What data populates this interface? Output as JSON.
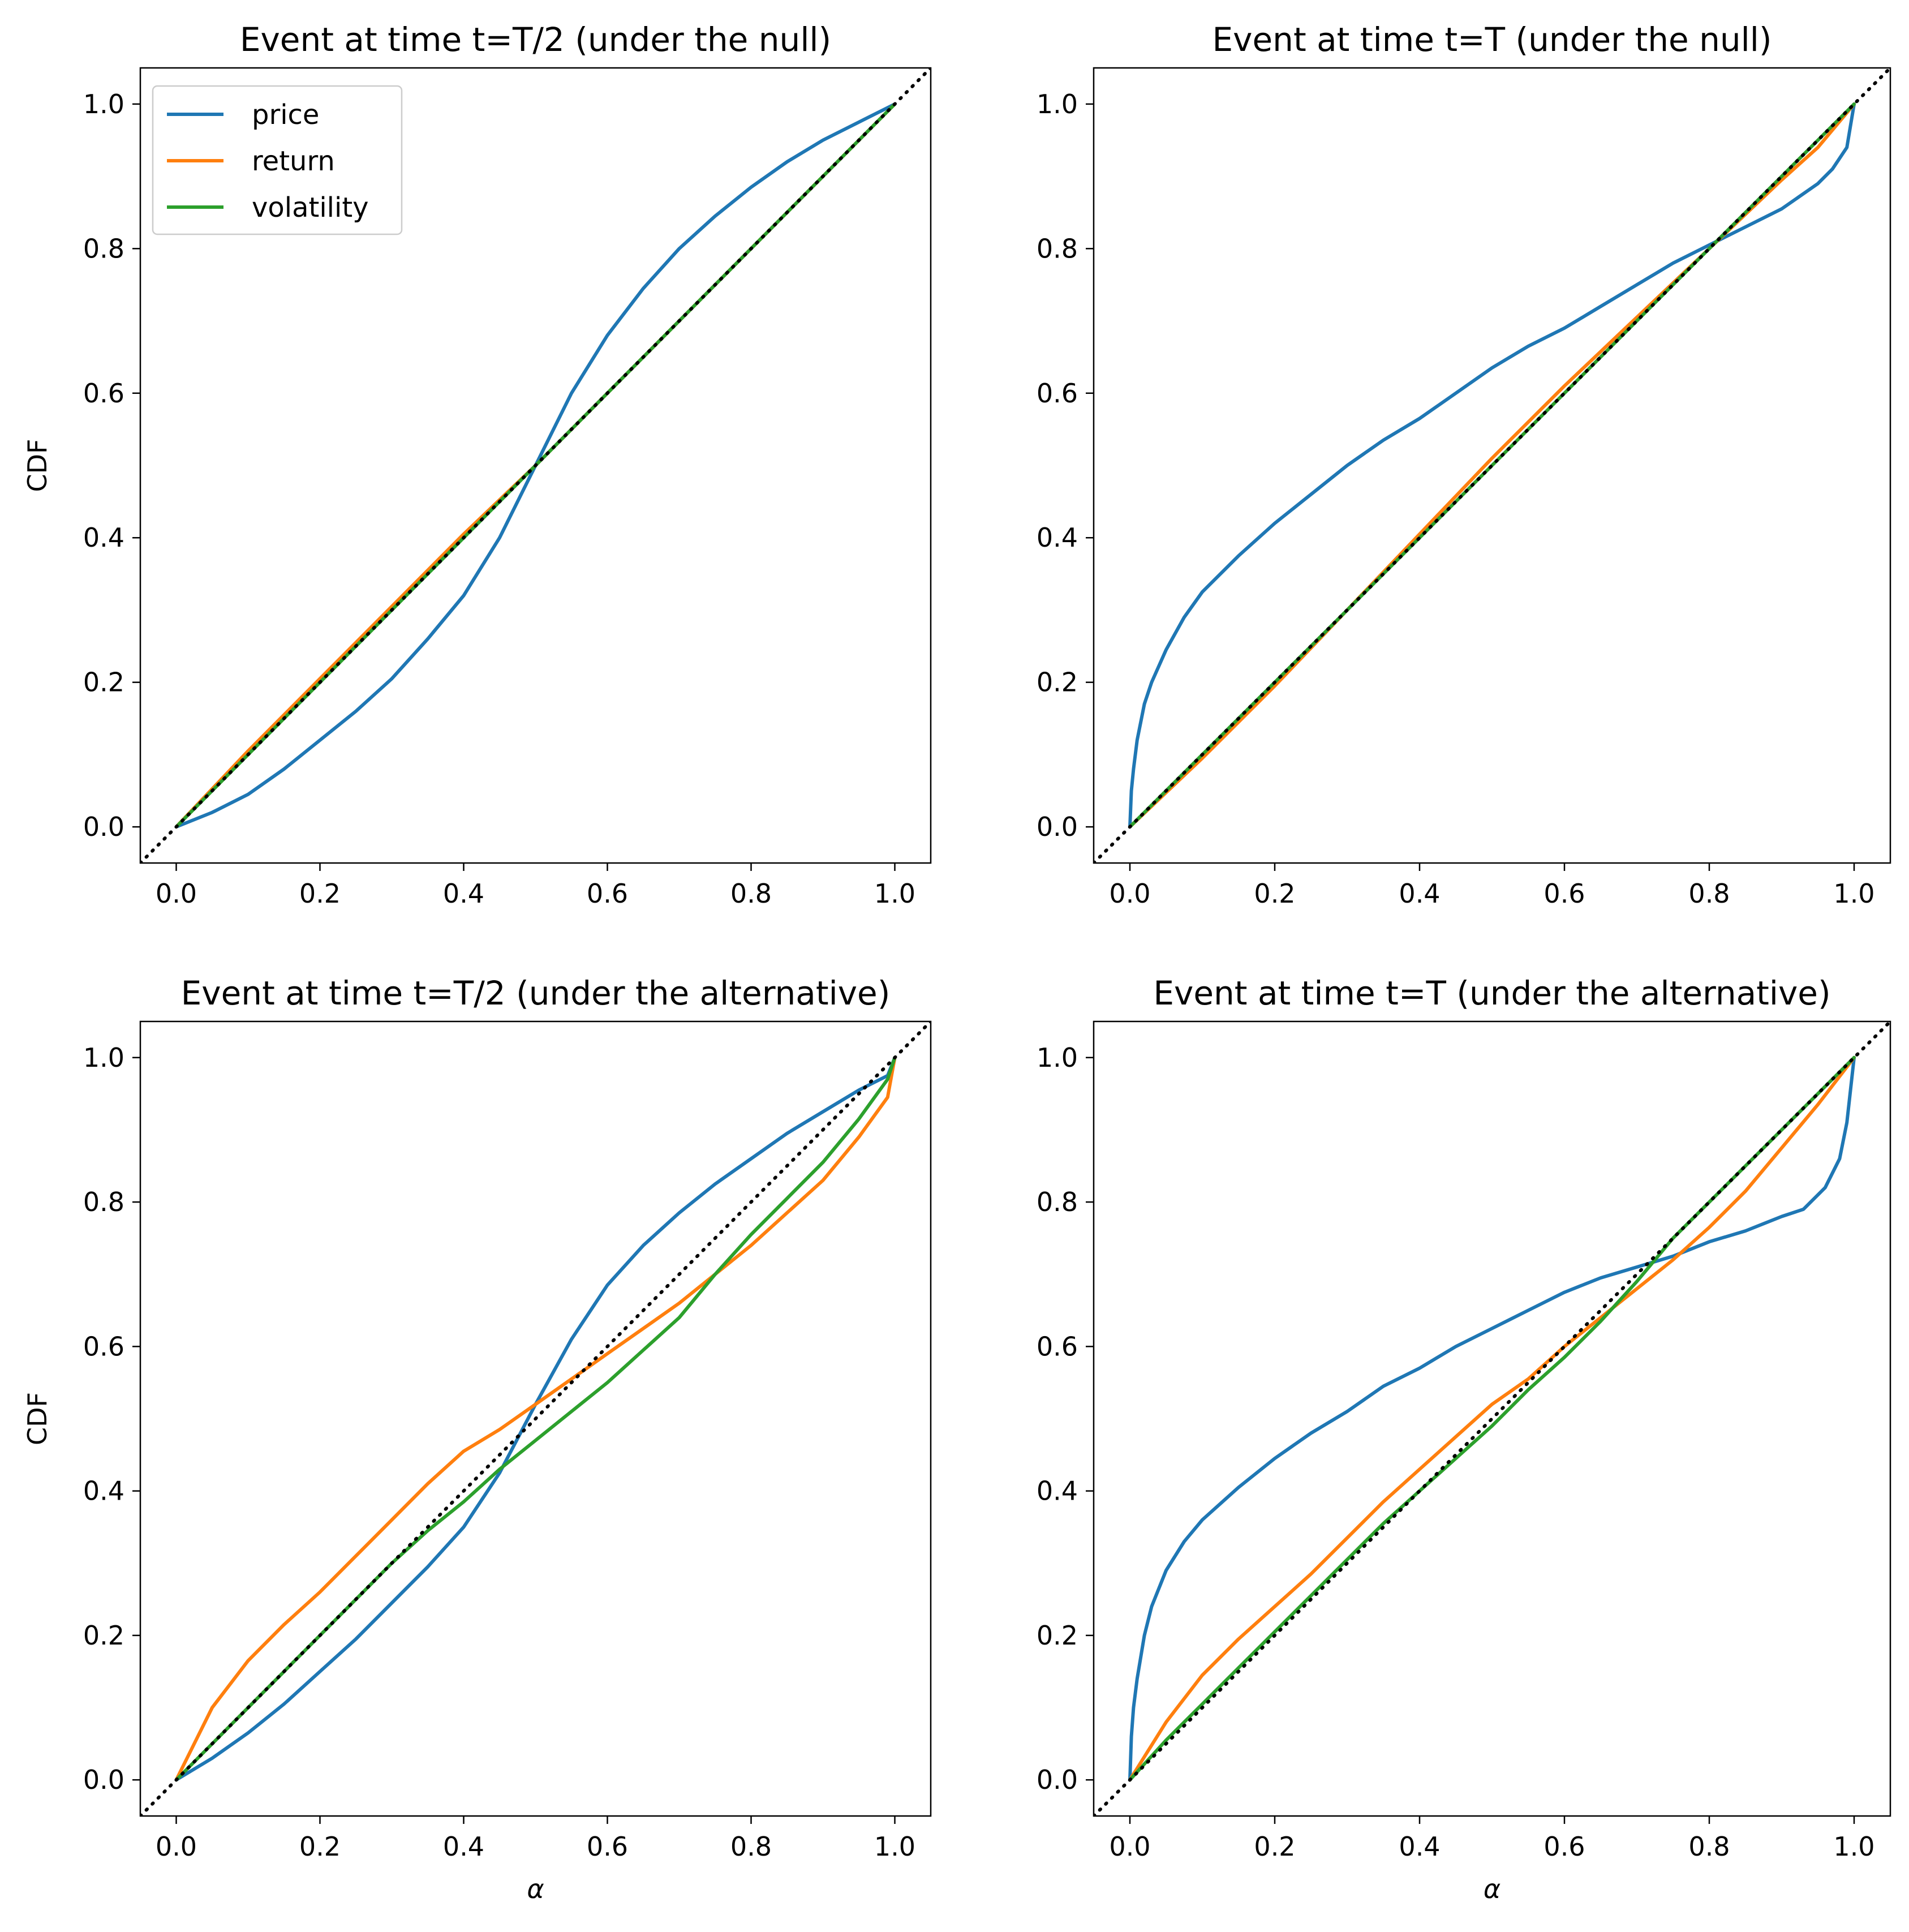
{
  "chart_data": [
    {
      "type": "line",
      "title": "Event at time t=T/2 (under the null)",
      "xlabel": "",
      "ylabel": "CDF",
      "xlim": [
        -0.05,
        1.05
      ],
      "ylim": [
        -0.05,
        1.05
      ],
      "xticks": [
        "0.0",
        "0.2",
        "0.4",
        "0.6",
        "0.8",
        "1.0"
      ],
      "yticks": [
        "0.0",
        "0.2",
        "0.4",
        "0.6",
        "0.8",
        "1.0"
      ],
      "legend": {
        "show": true,
        "position": "upper-left"
      },
      "reference_line": {
        "style": "dotted",
        "color": "#000000",
        "x": [
          -0.05,
          1.05
        ],
        "y": [
          -0.05,
          1.05
        ]
      },
      "series": [
        {
          "name": "price",
          "color": "#1f77b4",
          "x": [
            0,
            0.05,
            0.1,
            0.15,
            0.2,
            0.25,
            0.3,
            0.35,
            0.4,
            0.45,
            0.5,
            0.55,
            0.6,
            0.65,
            0.7,
            0.75,
            0.8,
            0.85,
            0.9,
            0.95,
            1.0
          ],
          "y": [
            0,
            0.02,
            0.045,
            0.08,
            0.12,
            0.16,
            0.205,
            0.26,
            0.32,
            0.4,
            0.5,
            0.6,
            0.68,
            0.745,
            0.8,
            0.845,
            0.885,
            0.92,
            0.95,
            0.975,
            1.0
          ]
        },
        {
          "name": "return",
          "color": "#ff7f0e",
          "x": [
            0,
            0.1,
            0.2,
            0.3,
            0.4,
            0.5,
            0.6,
            0.7,
            0.8,
            0.9,
            1.0
          ],
          "y": [
            0,
            0.105,
            0.205,
            0.305,
            0.405,
            0.5,
            0.6,
            0.7,
            0.8,
            0.9,
            1.0
          ]
        },
        {
          "name": "volatility",
          "color": "#2ca02c",
          "x": [
            0,
            0.1,
            0.2,
            0.3,
            0.4,
            0.5,
            0.6,
            0.7,
            0.8,
            0.9,
            1.0
          ],
          "y": [
            0,
            0.1,
            0.2,
            0.3,
            0.4,
            0.5,
            0.6,
            0.7,
            0.8,
            0.9,
            1.0
          ]
        }
      ]
    },
    {
      "type": "line",
      "title": "Event at time t=T (under the null)",
      "xlabel": "",
      "ylabel": "",
      "xlim": [
        -0.05,
        1.05
      ],
      "ylim": [
        -0.05,
        1.05
      ],
      "xticks": [
        "0.0",
        "0.2",
        "0.4",
        "0.6",
        "0.8",
        "1.0"
      ],
      "yticks": [
        "0.0",
        "0.2",
        "0.4",
        "0.6",
        "0.8",
        "1.0"
      ],
      "legend": {
        "show": false
      },
      "reference_line": {
        "style": "dotted",
        "color": "#000000",
        "x": [
          -0.05,
          1.05
        ],
        "y": [
          -0.05,
          1.05
        ]
      },
      "series": [
        {
          "name": "price",
          "color": "#1f77b4",
          "x": [
            0,
            0.002,
            0.005,
            0.01,
            0.02,
            0.03,
            0.05,
            0.075,
            0.1,
            0.15,
            0.2,
            0.25,
            0.3,
            0.35,
            0.4,
            0.45,
            0.5,
            0.55,
            0.6,
            0.65,
            0.7,
            0.75,
            0.8,
            0.85,
            0.9,
            0.95,
            0.97,
            0.99,
            1.0
          ],
          "y": [
            0,
            0.05,
            0.08,
            0.12,
            0.17,
            0.2,
            0.245,
            0.29,
            0.325,
            0.375,
            0.42,
            0.46,
            0.5,
            0.535,
            0.565,
            0.6,
            0.635,
            0.665,
            0.69,
            0.72,
            0.75,
            0.78,
            0.805,
            0.83,
            0.855,
            0.89,
            0.91,
            0.94,
            1.0
          ]
        },
        {
          "name": "return",
          "color": "#ff7f0e",
          "x": [
            0,
            0.1,
            0.2,
            0.3,
            0.4,
            0.5,
            0.6,
            0.7,
            0.8,
            0.9,
            0.95,
            1.0
          ],
          "y": [
            0,
            0.095,
            0.195,
            0.3,
            0.405,
            0.51,
            0.61,
            0.705,
            0.8,
            0.895,
            0.94,
            1.0
          ]
        },
        {
          "name": "volatility",
          "color": "#2ca02c",
          "x": [
            0,
            0.1,
            0.2,
            0.3,
            0.4,
            0.5,
            0.6,
            0.7,
            0.8,
            0.9,
            1.0
          ],
          "y": [
            0,
            0.1,
            0.2,
            0.3,
            0.4,
            0.5,
            0.6,
            0.7,
            0.8,
            0.9,
            1.0
          ]
        }
      ]
    },
    {
      "type": "line",
      "title": "Event at time t=T/2 (under the alternative)",
      "xlabel": "α",
      "ylabel": "CDF",
      "xlim": [
        -0.05,
        1.05
      ],
      "ylim": [
        -0.05,
        1.05
      ],
      "xticks": [
        "0.0",
        "0.2",
        "0.4",
        "0.6",
        "0.8",
        "1.0"
      ],
      "yticks": [
        "0.0",
        "0.2",
        "0.4",
        "0.6",
        "0.8",
        "1.0"
      ],
      "legend": {
        "show": false
      },
      "reference_line": {
        "style": "dotted",
        "color": "#000000",
        "x": [
          -0.05,
          1.05
        ],
        "y": [
          -0.05,
          1.05
        ]
      },
      "series": [
        {
          "name": "price",
          "color": "#1f77b4",
          "x": [
            0,
            0.05,
            0.1,
            0.15,
            0.2,
            0.25,
            0.3,
            0.35,
            0.4,
            0.45,
            0.5,
            0.55,
            0.6,
            0.65,
            0.7,
            0.75,
            0.8,
            0.85,
            0.9,
            0.95,
            0.99,
            1.0
          ],
          "y": [
            0,
            0.03,
            0.065,
            0.105,
            0.15,
            0.195,
            0.245,
            0.295,
            0.35,
            0.425,
            0.52,
            0.61,
            0.685,
            0.74,
            0.785,
            0.825,
            0.86,
            0.895,
            0.925,
            0.955,
            0.975,
            1.0
          ]
        },
        {
          "name": "return",
          "color": "#ff7f0e",
          "x": [
            0,
            0.05,
            0.1,
            0.15,
            0.2,
            0.25,
            0.3,
            0.35,
            0.4,
            0.45,
            0.5,
            0.55,
            0.6,
            0.65,
            0.7,
            0.75,
            0.8,
            0.85,
            0.9,
            0.95,
            0.99,
            1.0
          ],
          "y": [
            0,
            0.1,
            0.165,
            0.215,
            0.26,
            0.31,
            0.36,
            0.41,
            0.455,
            0.485,
            0.52,
            0.555,
            0.59,
            0.625,
            0.66,
            0.7,
            0.74,
            0.785,
            0.83,
            0.89,
            0.945,
            1.0
          ]
        },
        {
          "name": "volatility",
          "color": "#2ca02c",
          "x": [
            0,
            0.05,
            0.1,
            0.15,
            0.2,
            0.25,
            0.3,
            0.35,
            0.4,
            0.45,
            0.5,
            0.55,
            0.6,
            0.65,
            0.7,
            0.75,
            0.8,
            0.85,
            0.9,
            0.95,
            0.99,
            1.0
          ],
          "y": [
            0,
            0.05,
            0.1,
            0.15,
            0.2,
            0.25,
            0.3,
            0.345,
            0.385,
            0.43,
            0.47,
            0.51,
            0.55,
            0.595,
            0.64,
            0.7,
            0.755,
            0.805,
            0.855,
            0.915,
            0.97,
            1.0
          ]
        }
      ]
    },
    {
      "type": "line",
      "title": "Event at time t=T (under the alternative)",
      "xlabel": "α",
      "ylabel": "",
      "xlim": [
        -0.05,
        1.05
      ],
      "ylim": [
        -0.05,
        1.05
      ],
      "xticks": [
        "0.0",
        "0.2",
        "0.4",
        "0.6",
        "0.8",
        "1.0"
      ],
      "yticks": [
        "0.0",
        "0.2",
        "0.4",
        "0.6",
        "0.8",
        "1.0"
      ],
      "legend": {
        "show": false
      },
      "reference_line": {
        "style": "dotted",
        "color": "#000000",
        "x": [
          -0.05,
          1.05
        ],
        "y": [
          -0.05,
          1.05
        ]
      },
      "series": [
        {
          "name": "price",
          "color": "#1f77b4",
          "x": [
            0,
            0.002,
            0.005,
            0.01,
            0.02,
            0.03,
            0.05,
            0.075,
            0.1,
            0.15,
            0.2,
            0.25,
            0.3,
            0.35,
            0.4,
            0.45,
            0.5,
            0.55,
            0.6,
            0.65,
            0.7,
            0.75,
            0.8,
            0.85,
            0.9,
            0.93,
            0.96,
            0.98,
            0.99,
            1.0
          ],
          "y": [
            0,
            0.06,
            0.1,
            0.14,
            0.2,
            0.24,
            0.29,
            0.33,
            0.36,
            0.405,
            0.445,
            0.48,
            0.51,
            0.545,
            0.57,
            0.6,
            0.625,
            0.65,
            0.675,
            0.695,
            0.71,
            0.725,
            0.745,
            0.76,
            0.78,
            0.79,
            0.82,
            0.86,
            0.91,
            1.0
          ]
        },
        {
          "name": "return",
          "color": "#ff7f0e",
          "x": [
            0,
            0.05,
            0.1,
            0.15,
            0.2,
            0.25,
            0.3,
            0.35,
            0.4,
            0.45,
            0.5,
            0.55,
            0.6,
            0.65,
            0.7,
            0.75,
            0.8,
            0.85,
            0.9,
            0.95,
            1.0
          ],
          "y": [
            0,
            0.08,
            0.145,
            0.195,
            0.24,
            0.285,
            0.335,
            0.385,
            0.43,
            0.475,
            0.52,
            0.555,
            0.6,
            0.64,
            0.68,
            0.72,
            0.765,
            0.815,
            0.875,
            0.935,
            1.0
          ]
        },
        {
          "name": "volatility",
          "color": "#2ca02c",
          "x": [
            0,
            0.05,
            0.1,
            0.15,
            0.2,
            0.25,
            0.3,
            0.35,
            0.4,
            0.45,
            0.5,
            0.55,
            0.6,
            0.65,
            0.7,
            0.75,
            0.8,
            0.85,
            0.9,
            0.95,
            1.0
          ],
          "y": [
            0,
            0.055,
            0.105,
            0.155,
            0.205,
            0.255,
            0.305,
            0.355,
            0.4,
            0.445,
            0.49,
            0.54,
            0.585,
            0.635,
            0.69,
            0.75,
            0.8,
            0.85,
            0.9,
            0.95,
            1.0
          ]
        }
      ]
    }
  ]
}
